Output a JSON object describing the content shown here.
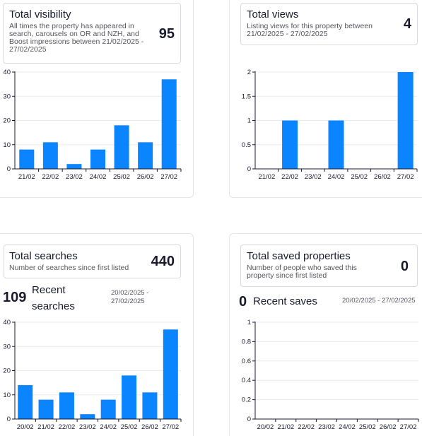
{
  "panels": {
    "visibility": {
      "title": "Total visibility",
      "description": "All times the property has appeared in search, carousels on OR and NZH, and Boost impressions between 21/02/2025 - 27/02/2025",
      "value": "95"
    },
    "views": {
      "title": "Total views",
      "description": "Listing views for this property between 21/02/2025 - 27/02/2025",
      "value": "4"
    },
    "searches": {
      "title": "Total searches",
      "description": "Number of searches since first listed",
      "value": "440",
      "recent": {
        "count": "109",
        "label": "Recent searches",
        "range": "20/02/2025 - 27/02/2025"
      }
    },
    "saved": {
      "title": "Total saved properties",
      "description": "Number of people who saved this property since first listed",
      "value": "0",
      "recent": {
        "count": "0",
        "label": "Recent saves",
        "range": "20/02/2025 - 27/02/2025"
      }
    }
  },
  "colors": {
    "bar": "#0a84ff",
    "axis": "#1a1a2e",
    "grid": "#ebebef"
  },
  "chart_data": [
    {
      "id": "visibility",
      "type": "bar",
      "categories": [
        "21/02",
        "22/02",
        "23/02",
        "24/02",
        "25/02",
        "26/02",
        "27/02"
      ],
      "values": [
        8,
        11,
        2,
        8,
        18,
        11,
        37
      ],
      "yticks": [
        "0",
        "10",
        "20",
        "30",
        "40"
      ],
      "ylim": [
        0,
        40
      ],
      "grid": true
    },
    {
      "id": "views",
      "type": "bar",
      "categories": [
        "21/02",
        "22/02",
        "23/02",
        "24/02",
        "25/02",
        "26/02",
        "27/02"
      ],
      "values": [
        0,
        1,
        0,
        1,
        0,
        0,
        2
      ],
      "yticks": [
        "0",
        "0.5",
        "1",
        "1.5",
        "2"
      ],
      "ylim": [
        0,
        2
      ],
      "grid": true
    },
    {
      "id": "searches",
      "type": "bar",
      "categories": [
        "20/02",
        "21/02",
        "22/02",
        "23/02",
        "24/02",
        "25/02",
        "26/02",
        "27/02"
      ],
      "values": [
        14,
        8,
        11,
        2,
        8,
        18,
        11,
        37
      ],
      "yticks": [
        "0",
        "10",
        "20",
        "30",
        "40"
      ],
      "ylim": [
        0,
        40
      ],
      "grid": true
    },
    {
      "id": "saved",
      "type": "bar",
      "categories": [
        "20/02",
        "21/02",
        "22/02",
        "23/02",
        "24/02",
        "25/02",
        "26/02",
        "27/02"
      ],
      "values": [
        0,
        0,
        0,
        0,
        0,
        0,
        0,
        0
      ],
      "yticks": [
        "0",
        "0.2",
        "0.4",
        "0.6",
        "0.8",
        "1"
      ],
      "ylim": [
        0,
        1
      ],
      "grid": true
    }
  ]
}
